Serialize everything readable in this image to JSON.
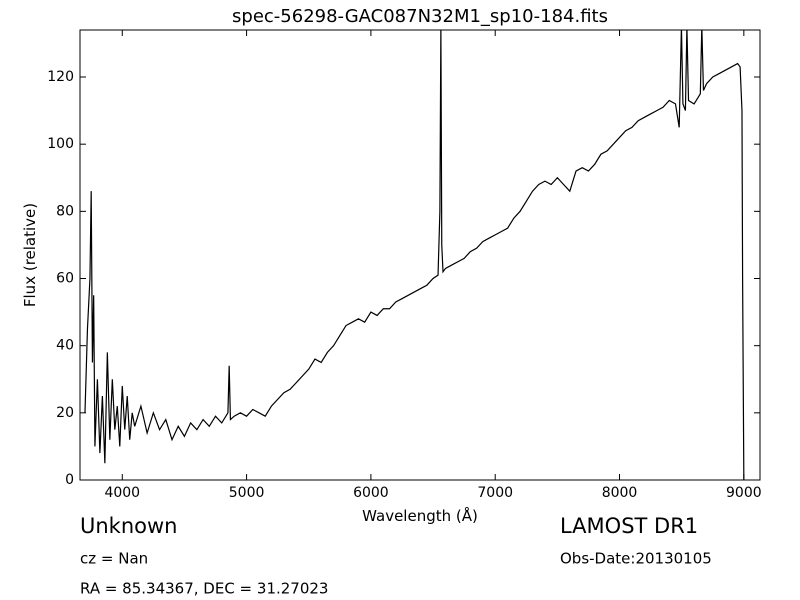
{
  "chart_data": {
    "type": "line",
    "title": "spec-56298-GAC087N32M1_sp10-184.fits",
    "x_label": "Wavelength (Å)",
    "y_label": "Flux (relative)",
    "annotations": [
      "Unknown",
      "cz = Nan",
      "RA = 85.34367, DEC = 31.27023",
      "LAMOST DR1",
      "Obs-Date:20130105"
    ],
    "xlim": [
      3660,
      9130
    ],
    "ylim": [
      0,
      134
    ],
    "xticks": [
      4000,
      5000,
      6000,
      7000,
      8000,
      9000
    ],
    "yticks": [
      0,
      20,
      40,
      60,
      80,
      100,
      120
    ],
    "grid": false,
    "series": [
      {
        "color": "#000000",
        "x": [
          3700,
          3720,
          3740,
          3750,
          3760,
          3770,
          3780,
          3800,
          3820,
          3840,
          3860,
          3880,
          3900,
          3920,
          3940,
          3960,
          3980,
          4000,
          4020,
          4040,
          4060,
          4080,
          4100,
          4150,
          4200,
          4250,
          4300,
          4350,
          4400,
          4450,
          4500,
          4550,
          4600,
          4650,
          4700,
          4750,
          4800,
          4850,
          4860,
          4870,
          4900,
          4950,
          5000,
          5050,
          5100,
          5150,
          5200,
          5250,
          5300,
          5350,
          5400,
          5450,
          5500,
          5550,
          5600,
          5650,
          5700,
          5750,
          5800,
          5850,
          5900,
          5950,
          6000,
          6050,
          6100,
          6150,
          6200,
          6250,
          6300,
          6350,
          6400,
          6450,
          6500,
          6540,
          6555,
          6563,
          6570,
          6580,
          6600,
          6650,
          6700,
          6750,
          6800,
          6850,
          6900,
          6950,
          7000,
          7050,
          7100,
          7150,
          7200,
          7250,
          7300,
          7350,
          7400,
          7450,
          7500,
          7550,
          7600,
          7650,
          7700,
          7750,
          7800,
          7850,
          7900,
          7950,
          8000,
          8050,
          8100,
          8150,
          8200,
          8250,
          8300,
          8350,
          8400,
          8450,
          8480,
          8498,
          8510,
          8530,
          8542,
          8555,
          8600,
          8650,
          8662,
          8675,
          8700,
          8750,
          8800,
          8850,
          8900,
          8950,
          8970,
          8985,
          8990,
          9000
        ],
        "values": [
          20,
          45,
          60,
          86,
          35,
          55,
          10,
          30,
          8,
          25,
          5,
          38,
          12,
          30,
          15,
          22,
          10,
          28,
          15,
          25,
          12,
          20,
          16,
          22,
          14,
          20,
          15,
          18,
          12,
          16,
          13,
          17,
          15,
          18,
          16,
          19,
          17,
          20,
          34,
          18,
          19,
          20,
          19,
          21,
          20,
          19,
          22,
          24,
          26,
          27,
          29,
          31,
          33,
          36,
          35,
          38,
          40,
          43,
          46,
          47,
          48,
          47,
          50,
          49,
          51,
          51,
          53,
          54,
          55,
          56,
          57,
          58,
          60,
          61,
          80,
          135,
          70,
          62,
          63,
          64,
          65,
          66,
          68,
          69,
          71,
          72,
          73,
          74,
          75,
          78,
          80,
          83,
          86,
          88,
          89,
          88,
          90,
          88,
          86,
          92,
          93,
          92,
          94,
          97,
          98,
          100,
          102,
          104,
          105,
          107,
          108,
          109,
          110,
          111,
          113,
          112,
          105,
          135,
          112,
          110,
          135,
          113,
          112,
          115,
          135,
          116,
          118,
          120,
          121,
          122,
          123,
          124,
          123,
          110,
          60,
          0
        ]
      }
    ]
  }
}
